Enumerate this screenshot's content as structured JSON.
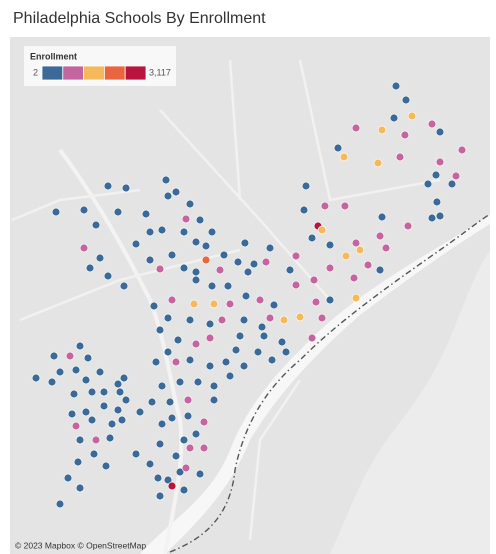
{
  "chart_data": {
    "type": "map",
    "title": "Philadelphia Schools By Enrollment",
    "legend_title": "Enrollment",
    "colorlim": [
      2,
      3117
    ],
    "legend_ticks": [
      2,
      {
        "value": 3117,
        "label": "3,117"
      }
    ],
    "colors": [
      "#3b6a98",
      "#c4659f",
      "#f4b95a",
      "#e9653f",
      "#b8143f"
    ],
    "lonlim": [
      -75.3,
      -74.94
    ],
    "latlim": [
      39.892,
      40.15
    ],
    "attribution": "© 2023 Mapbox © OpenStreetMap",
    "points": {
      "lon": [
        -75.0105,
        -75.003,
        -74.9985,
        -75.012,
        -75.0405,
        -75.021,
        -75.0038,
        -74.9835,
        -74.9775,
        -74.961,
        -75.0075,
        -75.024,
        -75.0495,
        -75.054,
        -74.9775,
        -74.9805,
        -74.9655,
        -74.9685,
        -74.9865,
        -74.9798,
        -74.9835,
        -74.9775,
        -75.0015,
        -75.021,
        -75.0225,
        -75.018,
        -75.0405,
        -75.0375,
        -75.06,
        -75.0735,
        -75.069,
        -75.0638,
        -75.078,
        -75.0795,
        -75.0488,
        -75.066,
        -75.06,
        -75.048,
        -75.042,
        -75.0225,
        -75.0315,
        -75.0855,
        -75.09,
        -75.0855,
        -75.072,
        -75.06,
        -75.0405,
        -75.0705,
        -75.0825,
        -75.0945,
        -75.066,
        -75.0735,
        -75.102,
        -75.105,
        -75.111,
        -75.1095,
        -75.096,
        -75.1275,
        -75.1305,
        -75.114,
        -75.1035,
        -75.093,
        -75.1125,
        -75.105,
        -75.117,
        -75.108,
        -75.1238,
        -75.129,
        -75.1215,
        -75.1395,
        -75.1425,
        -75.153,
        -75.1605,
        -75.1695,
        -75.1785,
        -75.1875,
        -75.195,
        -75.2055,
        -75.195,
        -75.186,
        -75.1695,
        -75.1575,
        -75.1485,
        -75.1605,
        -75.153,
        -75.168,
        -75.1815,
        -75.1755,
        -75.183,
        -75.165,
        -75.198,
        -75.219,
        -75.2355,
        -75.2445,
        -75.2655,
        -75.2265,
        -75.213,
        -75.2445,
        -75.2325,
        -75.24,
        -75.2265,
        -75.2145,
        -75.1605,
        -75.1485,
        -75.1365,
        -75.123,
        -75.135,
        -75.147,
        -75.162,
        -75.1785,
        -75.192,
        -75.1815,
        -75.1875,
        -75.165,
        -75.15,
        -75.141,
        -75.1245,
        -75.15,
        -75.1605,
        -75.174,
        -75.1815,
        -75.1905,
        -75.1755,
        -75.165,
        -75.15,
        -75.138,
        -75.1245,
        -75.135,
        -75.159,
        -75.1725,
        -75.186,
        -75.147,
        -75.147,
        -75.1665,
        -75.18,
        -75.1935,
        -75.1785,
        -75.1665,
        -75.1545,
        -75.1605,
        -75.1695,
        -75.1755,
        -75.165,
        -75.1545,
        -75.1725,
        -75.1815,
        -75.168,
        -75.189,
        -75.1875,
        -75.1785,
        -75.1695,
        -75.1575,
        -75.2055,
        -75.195,
        -75.2025,
        -75.186,
        -75.1875,
        -75.2805,
        -75.267,
        -75.255,
        -75.2415,
        -75.2475,
        -75.2685,
        -75.2625,
        -75.2505,
        -75.243,
        -75.2325,
        -75.252,
        -75.2385,
        -75.2295,
        -75.219,
        -75.2145,
        -75.2295,
        -75.219,
        -75.243,
        -75.2535,
        -75.2385,
        -75.2505,
        -75.2475,
        -75.2355,
        -75.225,
        -75.216,
        -75.213,
        -75.2235,
        -75.237,
        -75.249,
        -75.2565,
        -75.2475,
        -75.2625,
        -75.228,
        -75.2175
      ],
      "lat": [
        40.1255,
        40.1185,
        40.1105,
        40.1095,
        40.1045,
        40.1035,
        40.101,
        40.1065,
        40.1025,
        40.0935,
        40.09,
        40.087,
        40.09,
        40.0945,
        40.0875,
        40.081,
        40.0805,
        40.0765,
        40.0765,
        40.0675,
        40.0595,
        40.0605,
        40.0555,
        40.06,
        40.0505,
        40.0445,
        40.047,
        40.0435,
        40.046,
        40.0495,
        40.0555,
        40.0655,
        40.0755,
        40.0635,
        40.0655,
        40.0535,
        40.0345,
        40.0405,
        40.0295,
        40.0335,
        40.036,
        40.0405,
        40.0335,
        40.026,
        40.0285,
        40.0185,
        40.0195,
        40.0175,
        40.01,
        40.0085,
        40.0095,
        39.9995,
        40.016,
        40.0095,
        40.005,
        40.0005,
        39.9975,
        40.0005,
        39.9935,
        39.9925,
        39.9885,
        39.9925,
        40.0185,
        40.0445,
        40.0365,
        40.0375,
        40.047,
        40.0375,
        40.0325,
        40.041,
        40.0335,
        40.0385,
        40.0325,
        40.0345,
        40.041,
        40.034,
        40.0385,
        40.0465,
        40.0525,
        40.0535,
        40.0525,
        40.0585,
        40.0525,
        40.0475,
        40.0455,
        40.059,
        40.0705,
        40.0725,
        40.0785,
        40.0665,
        40.0615,
        40.0625,
        40.056,
        40.0635,
        40.0625,
        40.0755,
        40.0745,
        40.0445,
        40.0395,
        40.0345,
        40.0305,
        40.0255,
        40.0285,
        40.0255,
        40.0255,
        40.0205,
        40.0165,
        40.0165,
        40.0165,
        40.0185,
        40.0155,
        40.0095,
        40.0035,
        40.0085,
        40.0065,
        40.0085,
        40.0085,
        39.9995,
        39.9965,
        39.9985,
        39.9925,
        39.9875,
        39.9875,
        39.9885,
        39.9855,
        39.9875,
        39.9855,
        39.9805,
        39.9775,
        39.9775,
        39.9755,
        39.9755,
        39.9685,
        39.9685,
        39.9675,
        39.9675,
        39.9595,
        39.9605,
        39.9575,
        39.9515,
        39.9485,
        39.9405,
        39.9445,
        39.9445,
        39.9325,
        39.9285,
        39.9345,
        39.9295,
        39.9205,
        39.9255,
        39.9235,
        39.9315,
        39.9415,
        39.9365,
        39.9625,
        39.9565,
        39.9465,
        39.9795,
        39.9905,
        39.9905,
        39.9895,
        39.9955,
        39.9775,
        39.9825,
        39.9835,
        39.9785,
        39.9825,
        39.9715,
        39.9725,
        39.9725,
        39.9765,
        39.9795,
        39.9655,
        39.9635,
        39.9625,
        39.9615,
        39.9585,
        39.9555,
        39.9485,
        39.9485,
        39.9495,
        39.9585,
        39.9685,
        39.9565,
        39.9415,
        39.9375,
        39.9295,
        39.9245,
        39.9165,
        39.9355,
        39.9725
      ],
      "values": [
        450,
        450,
        1500,
        450,
        900,
        1500,
        900,
        900,
        450,
        900,
        900,
        1500,
        1500,
        450,
        900,
        450,
        900,
        450,
        450,
        450,
        450,
        450,
        900,
        450,
        900,
        900,
        900,
        1500,
        450,
        450,
        2800,
        900,
        450,
        450,
        900,
        1500,
        900,
        1500,
        900,
        450,
        900,
        900,
        450,
        900,
        900,
        450,
        1500,
        900,
        1500,
        1500,
        900,
        900,
        450,
        900,
        450,
        450,
        450,
        450,
        450,
        450,
        450,
        450,
        900,
        450,
        450,
        900,
        450,
        450,
        450,
        450,
        900,
        2000,
        450,
        450,
        450,
        900,
        450,
        450,
        450,
        450,
        450,
        450,
        450,
        450,
        450,
        900,
        450,
        450,
        450,
        450,
        450,
        450,
        450,
        450,
        450,
        450,
        450,
        900,
        450,
        450,
        450,
        450,
        450,
        450,
        450,
        450,
        900,
        1500,
        1500,
        900,
        450,
        450,
        450,
        450,
        450,
        900,
        450,
        900,
        900,
        450,
        450,
        450,
        900,
        450,
        450,
        450,
        450,
        450,
        450,
        450,
        450,
        450,
        450,
        900,
        450,
        450,
        450,
        450,
        900,
        450,
        450,
        450,
        900,
        900,
        450,
        450,
        900,
        450,
        450,
        2800,
        450,
        450,
        450,
        450,
        450,
        450,
        450,
        450,
        450,
        900,
        450,
        450,
        450,
        450,
        450,
        450,
        450,
        450,
        450,
        450,
        450,
        450,
        450,
        450,
        450,
        450,
        450,
        900,
        450,
        900,
        450,
        450,
        450,
        450,
        450,
        450,
        450,
        450,
        450,
        450,
        450
      ]
    }
  }
}
